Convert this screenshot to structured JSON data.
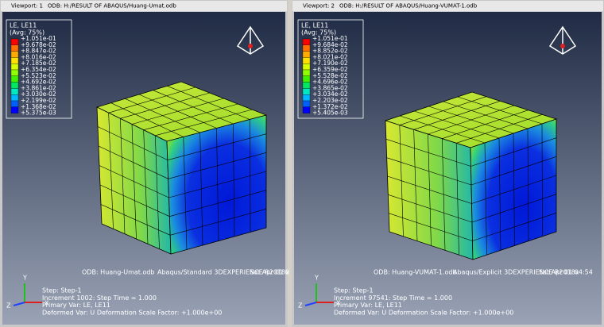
{
  "viewports": [
    {
      "title_bar": {
        "viewport": "Viewport: 1",
        "odb": "ODB: H:/RESULT OF ABAQUS/Huang-Umat.odb"
      },
      "legend": {
        "title": "LE, LE11",
        "subtitle": "(Avg: 75%)",
        "values": [
          "+1.051e-01",
          "+9.678e-02",
          "+8.847e-02",
          "+8.016e-02",
          "+7.185e-02",
          "+6.354e-02",
          "+5.523e-02",
          "+4.692e-02",
          "+3.861e-02",
          "+3.030e-02",
          "+2.199e-02",
          "+1.368e-02",
          "+5.375e-03"
        ]
      },
      "info": {
        "odb": "ODB: Huang-Umat.odb",
        "solver": "Abaqus/Standard 3DEXPERIENCE R2018x",
        "date": "Sat Apr 01 0",
        "step": "Step: Step-1",
        "increment": "Increment    1002: Step Time =    1.000",
        "primary_var": "Primary Var: LE, LE11",
        "deformed_var": "Deformed Var: U   Deformation Scale Factor: +1.000e+00"
      },
      "triad": {
        "y": "Y",
        "z": "Z",
        "x": "X"
      }
    },
    {
      "title_bar": {
        "viewport": "Viewport: 2",
        "odb": "ODB: H:/RESULT OF ABAQUS/Huang-VUMAT-1.odb"
      },
      "legend": {
        "title": "LE, LE11",
        "subtitle": "(Avg: 75%)",
        "values": [
          "+1.051e-01",
          "+9.684e-02",
          "+8.852e-02",
          "+8.021e-02",
          "+7.190e-02",
          "+6.359e-02",
          "+5.528e-02",
          "+4.696e-02",
          "+3.865e-02",
          "+3.034e-02",
          "+2.203e-02",
          "+1.372e-02",
          "+5.405e-03"
        ]
      },
      "info": {
        "odb": "ODB: Huang-VUMAT-1.odb",
        "solver": "Abaqus/Explicit 3DEXPERIENCE R2018x",
        "date": "Sat Apr 01 04:54",
        "step": "Step: Step-1",
        "increment": "Increment   97541: Step Time =    1.000",
        "primary_var": "Primary Var: LE, LE11",
        "deformed_var": "Deformed Var: U   Deformation Scale Factor: +1.000e+00"
      },
      "triad": {
        "y": "Y",
        "z": "Z",
        "x": "X"
      }
    }
  ]
}
